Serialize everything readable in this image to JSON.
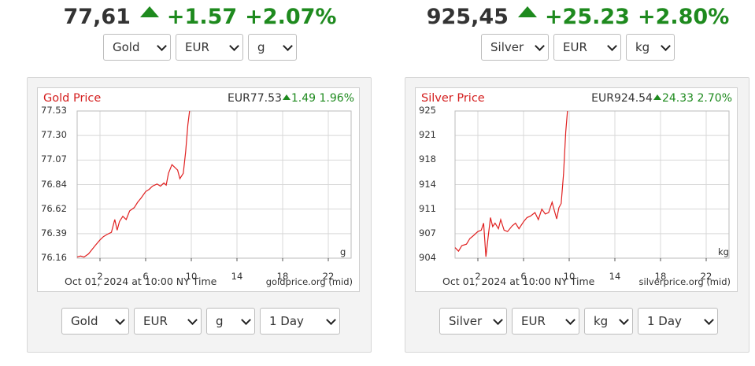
{
  "widgets": [
    {
      "quote": {
        "price": "77,61",
        "change": "+1.57",
        "percent": "+2.07%"
      },
      "top_selects": [
        {
          "name": "metal-select",
          "value": "Gold",
          "width": 86
        },
        {
          "name": "currency-select",
          "value": "EUR",
          "width": 86
        },
        {
          "name": "unit-select",
          "value": "g",
          "width": 62
        }
      ],
      "chart_title": "Gold Price",
      "chart_quote": {
        "price": "EUR77.53",
        "change": "1.49",
        "percent": "1.96%"
      },
      "unit_label": "g",
      "footer_date": "Oct 01, 2024 at 10:00 NY Time",
      "footer_source": "goldprice.org (mid)",
      "bottom_selects": [
        {
          "name": "metal-select-chart",
          "value": "Gold",
          "width": 86
        },
        {
          "name": "currency-select-chart",
          "value": "EUR",
          "width": 86
        },
        {
          "name": "unit-select-chart",
          "value": "g",
          "width": 62
        },
        {
          "name": "period-select",
          "value": "1 Day",
          "width": 102
        }
      ]
    },
    {
      "quote": {
        "price": "925,45",
        "change": "+25.23",
        "percent": "+2.80%"
      },
      "top_selects": [
        {
          "name": "metal-select",
          "value": "Silver",
          "width": 86
        },
        {
          "name": "currency-select",
          "value": "EUR",
          "width": 86
        },
        {
          "name": "unit-select",
          "value": "kg",
          "width": 62
        }
      ],
      "chart_title": "Silver Price",
      "chart_quote": {
        "price": "EUR924.54",
        "change": "24.33",
        "percent": "2.70%"
      },
      "unit_label": "kg",
      "footer_date": "Oct 01, 2024 at 10:00 NY Time",
      "footer_source": "silverprice.org (mid)",
      "bottom_selects": [
        {
          "name": "metal-select-chart",
          "value": "Silver",
          "width": 86
        },
        {
          "name": "currency-select-chart",
          "value": "EUR",
          "width": 86
        },
        {
          "name": "unit-select-chart",
          "value": "kg",
          "width": 62
        },
        {
          "name": "period-select",
          "value": "1 Day",
          "width": 102
        }
      ]
    }
  ],
  "colors": {
    "up": "#1e8a1e",
    "line": "#e02020",
    "title": "#d41d1d",
    "grid": "#d8d8d8"
  },
  "chart_data": [
    {
      "type": "line",
      "title": "Gold Price",
      "xlabel": "",
      "ylabel": "",
      "x_ticks": [
        "2",
        "6",
        "10",
        "14",
        "18",
        "22"
      ],
      "y_ticks": [
        "77.53",
        "77.30",
        "77.07",
        "76.84",
        "76.62",
        "76.39",
        "76.16"
      ],
      "xlim": [
        0,
        24
      ],
      "ylim": [
        76.16,
        77.53
      ],
      "grid": true,
      "series": [
        {
          "x": [
            0,
            0.3,
            0.6,
            1.0,
            1.3,
            1.6,
            2.0,
            2.3,
            2.6,
            3.0,
            3.3,
            3.5,
            3.7,
            4.0,
            4.3,
            4.6,
            5.0,
            5.3,
            5.6,
            6.0,
            6.3,
            6.6,
            7.0,
            7.3,
            7.6,
            7.8,
            8.0,
            8.3,
            8.6,
            8.8,
            9.0,
            9.3,
            9.5,
            9.7,
            9.85
          ],
          "y": [
            76.17,
            76.18,
            76.17,
            76.2,
            76.24,
            76.28,
            76.33,
            76.36,
            76.38,
            76.4,
            76.52,
            76.42,
            76.5,
            76.55,
            76.52,
            76.6,
            76.63,
            76.68,
            76.72,
            76.78,
            76.8,
            76.83,
            76.85,
            76.83,
            76.86,
            76.84,
            76.95,
            77.03,
            77.0,
            76.98,
            76.9,
            76.95,
            77.15,
            77.4,
            77.53
          ]
        }
      ]
    },
    {
      "type": "line",
      "title": "Silver Price",
      "xlabel": "",
      "ylabel": "",
      "x_ticks": [
        "2",
        "6",
        "10",
        "14",
        "18",
        "22"
      ],
      "y_ticks": [
        "925",
        "921",
        "918",
        "914",
        "911",
        "907",
        "904"
      ],
      "xlim": [
        0,
        24
      ],
      "ylim": [
        904,
        925
      ],
      "grid": true,
      "series": [
        {
          "x": [
            0,
            0.3,
            0.6,
            1.0,
            1.3,
            1.6,
            2.0,
            2.3,
            2.5,
            2.7,
            2.9,
            3.1,
            3.3,
            3.5,
            3.8,
            4.0,
            4.3,
            4.6,
            5.0,
            5.3,
            5.6,
            6.0,
            6.3,
            6.6,
            7.0,
            7.3,
            7.6,
            7.9,
            8.2,
            8.5,
            8.7,
            8.9,
            9.1,
            9.3,
            9.5,
            9.7,
            9.85
          ],
          "y": [
            905.5,
            905.0,
            905.8,
            906.0,
            906.8,
            907.2,
            907.8,
            908.0,
            909.0,
            904.2,
            907.0,
            909.8,
            908.5,
            909.0,
            908.2,
            909.5,
            908.0,
            907.8,
            908.6,
            909.0,
            908.2,
            909.2,
            909.8,
            910.0,
            910.5,
            909.5,
            911.0,
            910.3,
            910.5,
            912.0,
            910.8,
            909.6,
            911.2,
            911.8,
            916.0,
            922.0,
            925.0
          ]
        }
      ]
    }
  ]
}
